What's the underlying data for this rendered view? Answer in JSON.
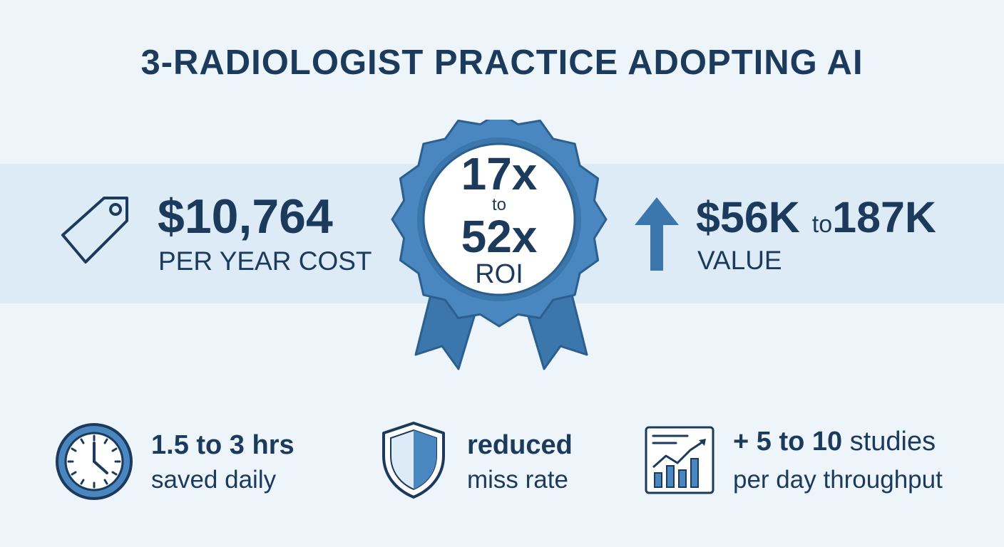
{
  "title": "3-RADIOLOGIST PRACTICE ADOPTING AI",
  "cost": {
    "amount": "$10,764",
    "label": "PER YEAR COST",
    "icon": "price-tag-icon"
  },
  "roi": {
    "low": "17x",
    "connector": "to",
    "high": "52x",
    "label": "ROI",
    "icon": "award-ribbon-icon"
  },
  "value": {
    "low": "$56K",
    "connector": "to",
    "high": "187K",
    "label": "VALUE",
    "icon": "up-arrow-icon"
  },
  "stats": [
    {
      "main": "1.5 to 3 hrs",
      "sub": "saved daily",
      "icon": "clock-icon"
    },
    {
      "main": "reduced",
      "sub": "miss rate",
      "icon": "shield-icon"
    },
    {
      "main_bold": "+ 5 to 10",
      "main_rest": "studies",
      "sub": "per day throughput",
      "icon": "rising-chart-icon"
    }
  ],
  "colors": {
    "navy": "#1b3a5c",
    "accent": "#4a86bf",
    "band": "#dcebf5",
    "background": "#edf5fa"
  }
}
